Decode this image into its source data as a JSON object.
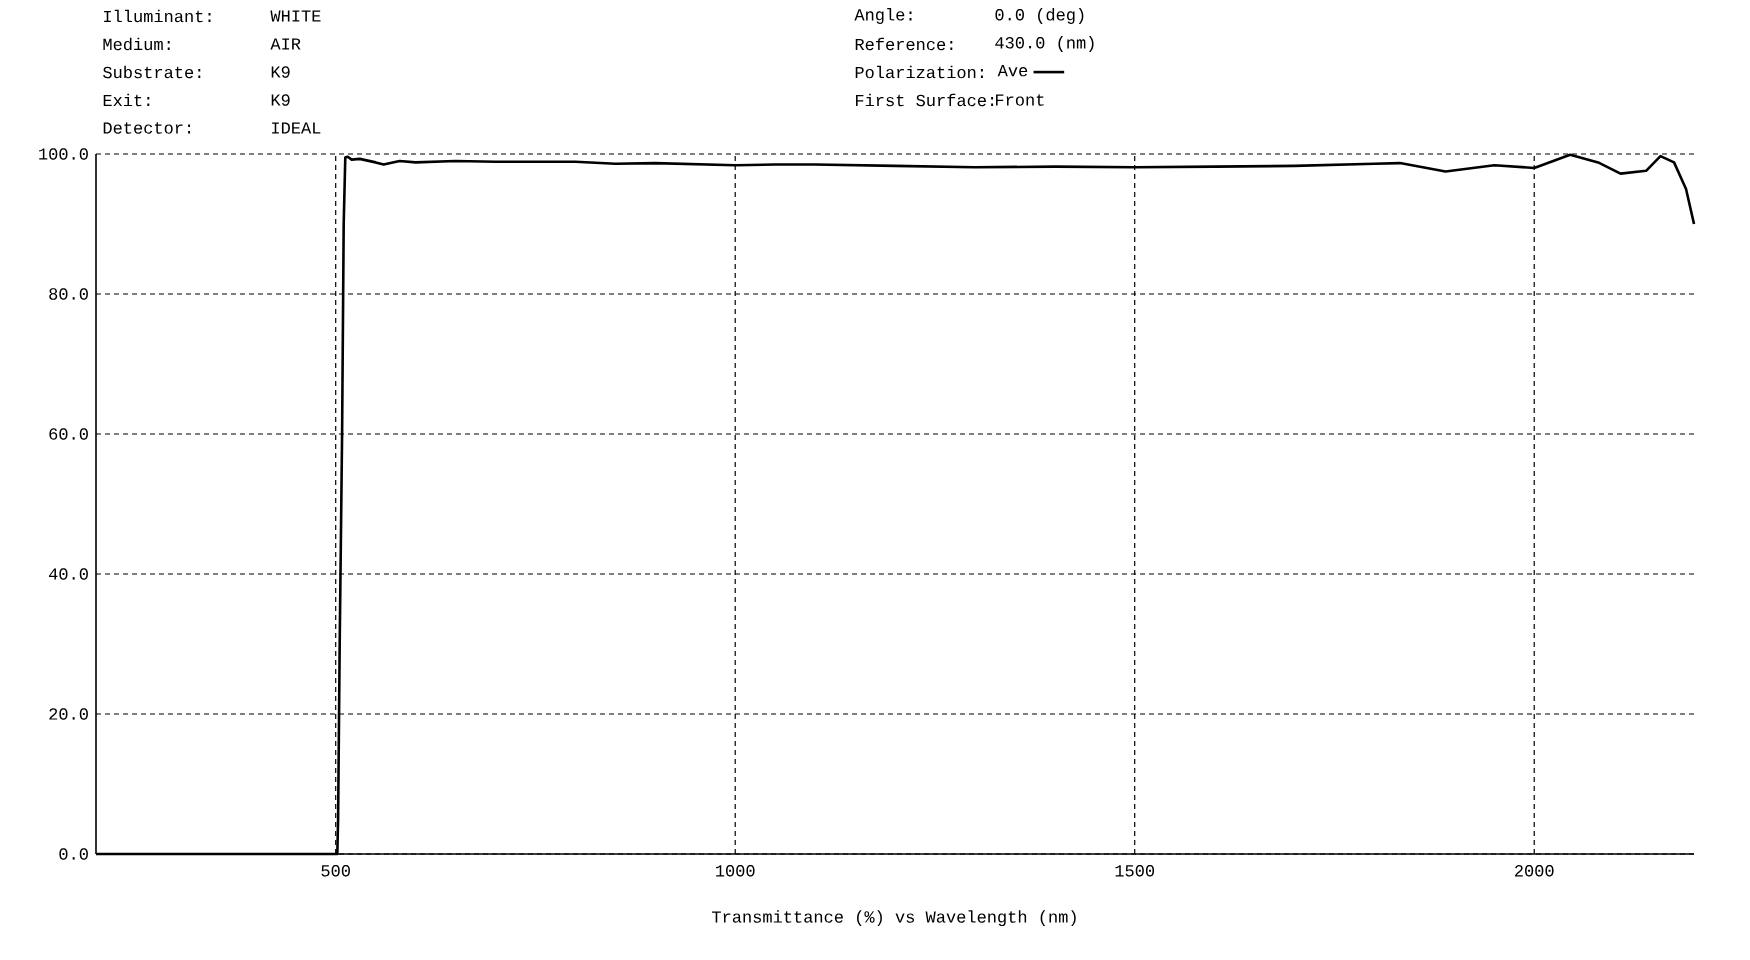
{
  "chart_data": {
    "type": "line",
    "xlabel": "Transmittance (%)  vs  Wavelength (nm)",
    "annotations": [
      "Illuminant:",
      "WHITE",
      "Medium:",
      "AIR",
      "Substrate:",
      "K9",
      "Exit:",
      "K9",
      "Detector:",
      "IDEAL",
      "Angle:",
      "0.0 (deg)",
      "Reference:",
      "430.0 (nm)",
      "Polarization:",
      "First Surface:",
      "Front"
    ],
    "xlim": [
      200,
      2200
    ],
    "ylim": [
      0,
      100
    ],
    "xticks": [
      500,
      1000,
      1500,
      2000
    ],
    "yticks": [
      {
        "value": 0,
        "label": "0.0"
      },
      {
        "value": 20,
        "label": "20.0"
      },
      {
        "value": 40,
        "label": "40.0"
      },
      {
        "value": 60,
        "label": "60.0"
      },
      {
        "value": 80,
        "label": "80.0"
      },
      {
        "value": 100,
        "label": "100.0"
      }
    ],
    "grid": true,
    "legend": "top",
    "line_style": "solid",
    "series": [
      {
        "name": "Ave",
        "color": "#000000",
        "x": [
          200,
          502,
          503,
          505,
          508,
          510,
          512,
          515,
          520,
          530,
          550,
          560,
          580,
          600,
          650,
          700,
          800,
          850,
          900,
          1000,
          1050,
          1100,
          1200,
          1300,
          1400,
          1500,
          1600,
          1700,
          1800,
          1832,
          1889,
          1950,
          2000,
          2045,
          2080,
          2108,
          2140,
          2158,
          2175,
          2190,
          2200
        ],
        "values": [
          0,
          0,
          5,
          30,
          60,
          90,
          99.5,
          99.6,
          99.2,
          99.3,
          98.8,
          98.5,
          99,
          98.8,
          99,
          98.9,
          98.9,
          98.6,
          98.7,
          98.4,
          98.5,
          98.5,
          98.3,
          98.1,
          98.2,
          98.1,
          98.2,
          98.3,
          98.6,
          98.7,
          97.5,
          98.4,
          98,
          99.9,
          98.8,
          97.2,
          97.6,
          99.7,
          98.8,
          95,
          90
        ]
      }
    ]
  }
}
